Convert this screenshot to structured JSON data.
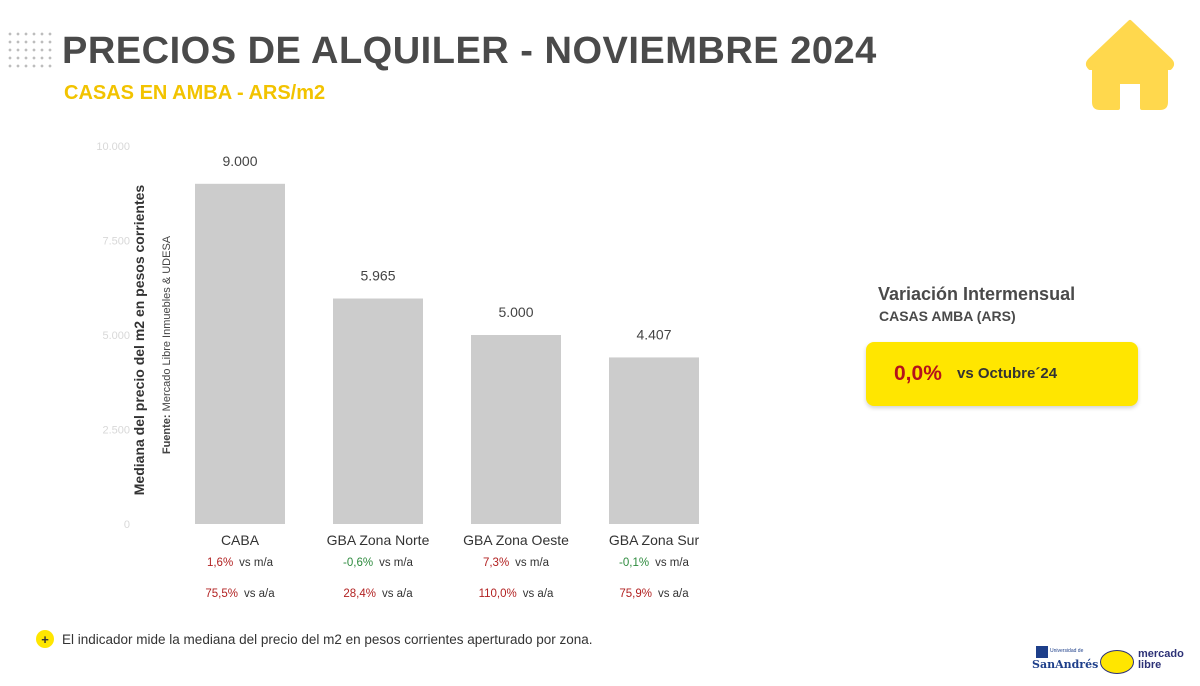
{
  "header": {
    "title": "PRECIOS DE ALQUILER -  NOVIEMBRE 2024",
    "subtitle": "CASAS EN AMBA - ARS/m2",
    "icon": "house-icon",
    "accent_color": "#f2c300"
  },
  "chart_data": {
    "type": "bar",
    "categories": [
      "CABA",
      "GBA Zona Norte",
      "GBA Zona Oeste",
      "GBA Zona Sur"
    ],
    "values": [
      9000,
      5965,
      5000,
      4407
    ],
    "value_labels": [
      "9.000",
      "5.965",
      "5.000",
      "4.407"
    ],
    "ylabel": "Mediana del precio del m2 en pesos corrientes",
    "yticks": [
      0,
      2500,
      5000,
      7500,
      10000
    ],
    "ytick_labels": [
      "0",
      "2.500",
      "5.000",
      "7.500",
      "10.000"
    ],
    "ylim": [
      0,
      10000
    ],
    "bar_color": "#cccccc",
    "grid": false
  },
  "source": {
    "label": "Fuente:",
    "text": " Mercado Libre Inmuebles & UDESA"
  },
  "stats": [
    {
      "mm": "1,6%",
      "mm_dir": "pos",
      "aa": "75,5%",
      "aa_dir": "pos"
    },
    {
      "mm": "-0,6%",
      "mm_dir": "neg",
      "aa": "28,4%",
      "aa_dir": "pos"
    },
    {
      "mm": "7,3%",
      "mm_dir": "pos",
      "aa": "110,0%",
      "aa_dir": "pos"
    },
    {
      "mm": "-0,1%",
      "mm_dir": "neg",
      "aa": "75,9%",
      "aa_dir": "pos"
    }
  ],
  "stats_labels": {
    "mm": "vs m/a",
    "aa": "vs a/a"
  },
  "variation": {
    "title": "Variación Intermensual",
    "subtitle": "CASAS AMBA (ARS)",
    "value": "0,0%",
    "text": "vs Octubre´24",
    "box_color": "#ffe600"
  },
  "note": {
    "badge": "+",
    "text": "El indicador mide la mediana del precio del m2 en pesos corrientes aperturado por zona."
  },
  "logos": {
    "udesa_top": "Universidad de",
    "udesa_name": "SanAndrés",
    "ml_line1": "mercado",
    "ml_line2": "libre"
  }
}
